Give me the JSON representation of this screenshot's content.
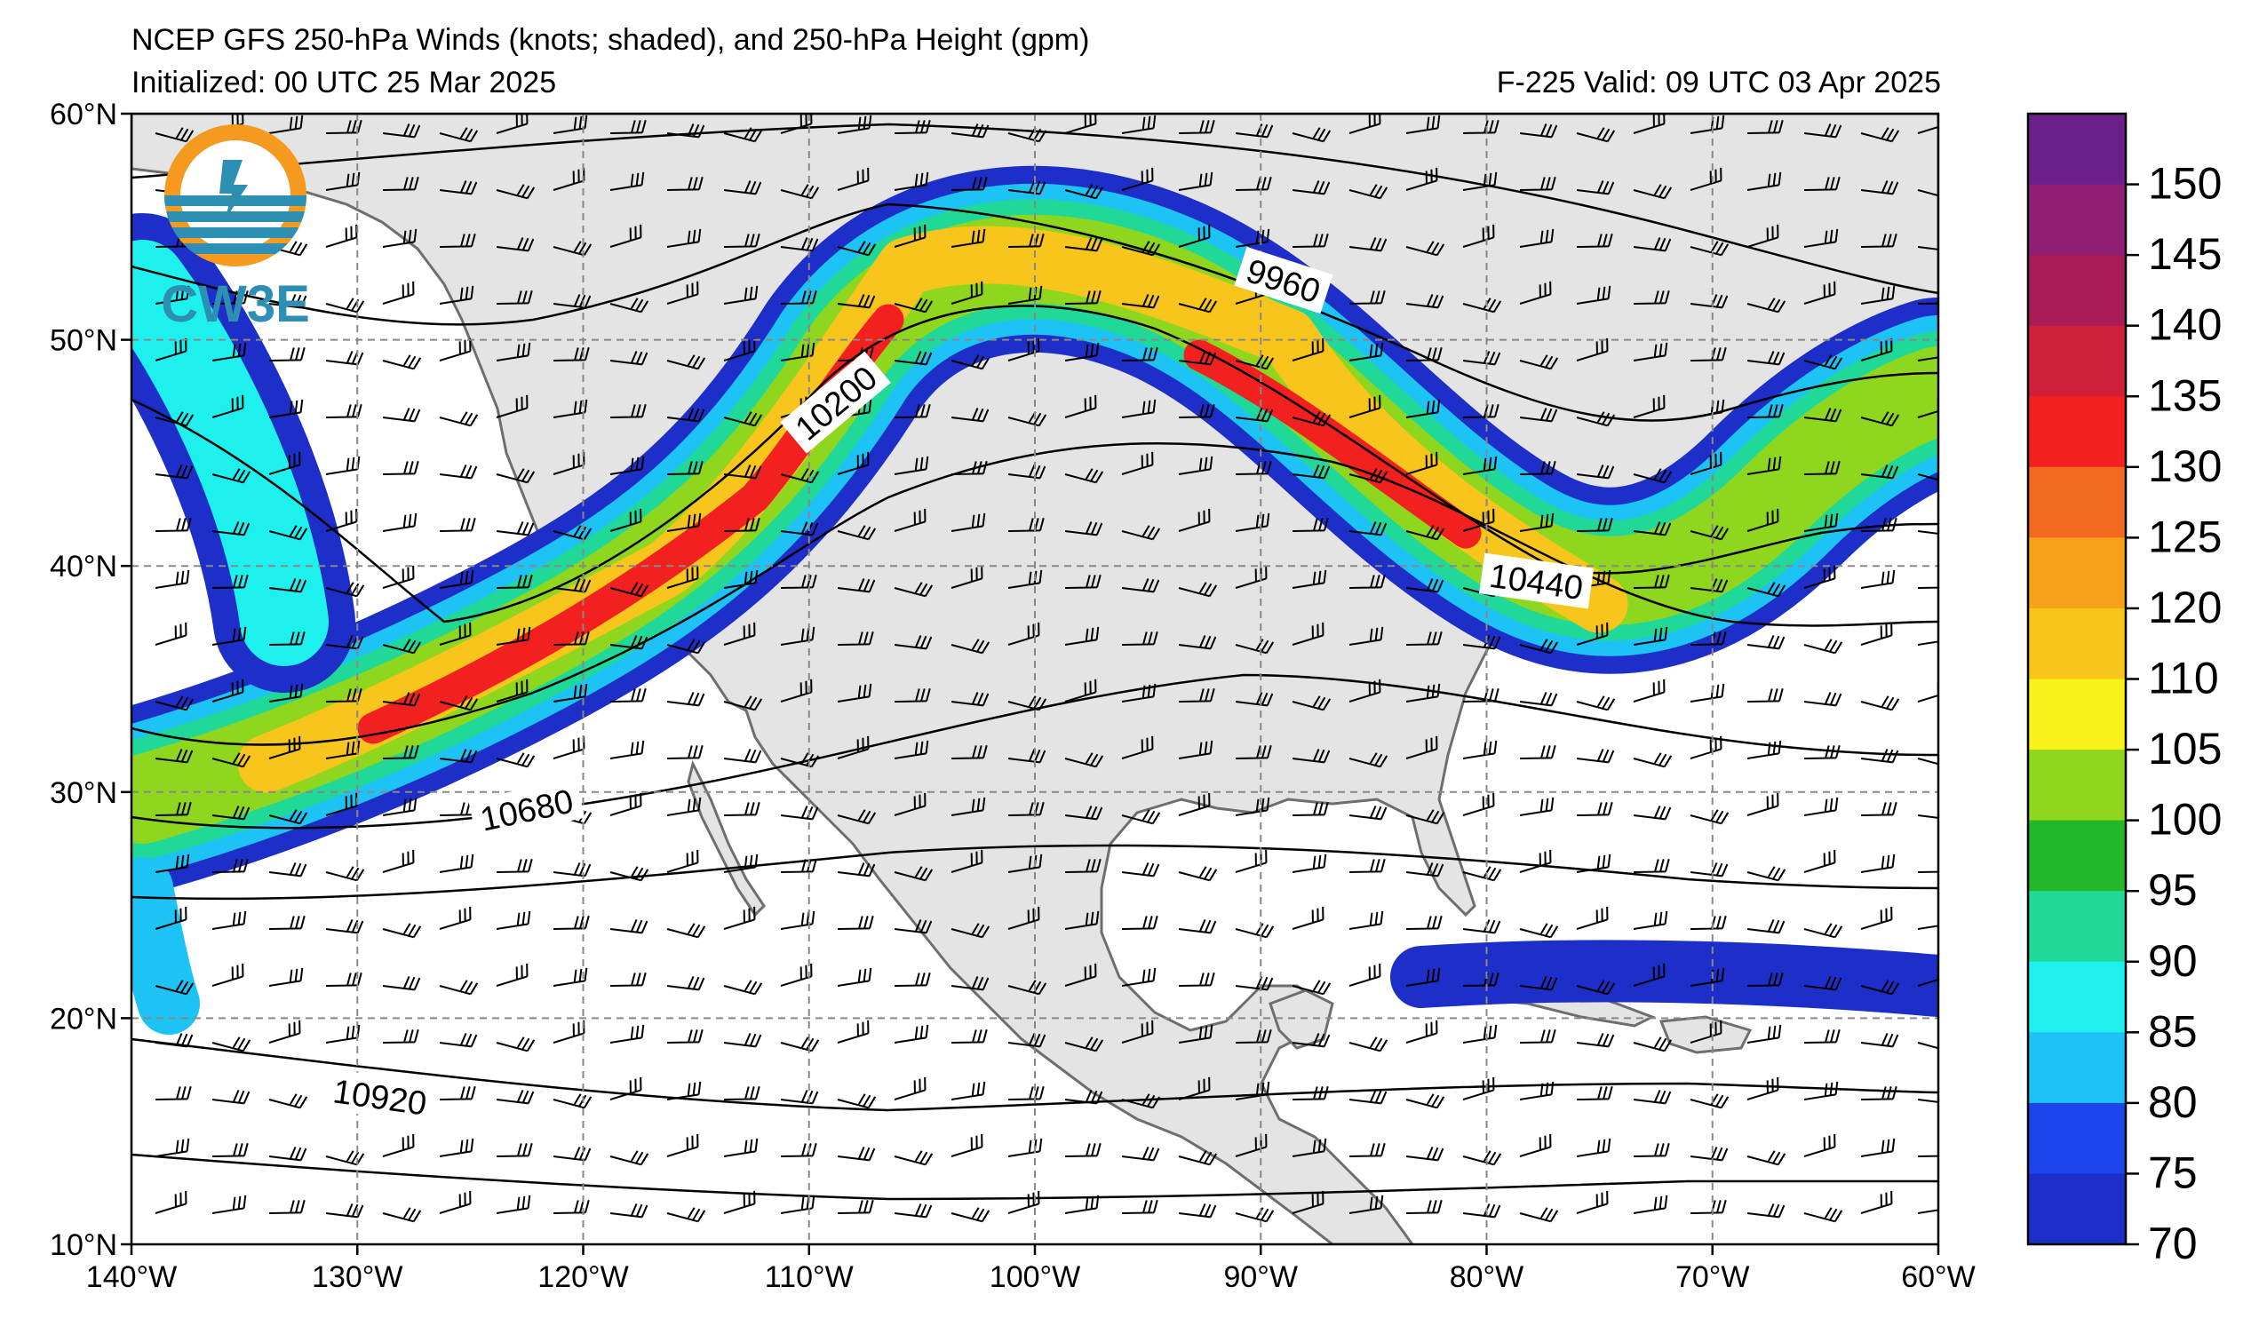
{
  "title": {
    "main": "NCEP GFS 250-hPa Winds (knots; shaded), and 250-hPa Height (gpm)",
    "initialized": "Initialized: 00 UTC 25 Mar 2025",
    "valid": "F-225  Valid: 09 UTC 03 Apr 2025"
  },
  "logo": {
    "text": "CW3E",
    "icon": "cw3e-sun-wave-logo"
  },
  "axes": {
    "lon_labels": [
      "140°W",
      "130°W",
      "120°W",
      "110°W",
      "100°W",
      "90°W",
      "80°W",
      "70°W",
      "60°W"
    ],
    "lat_labels": [
      "60°N",
      "50°N",
      "40°N",
      "30°N",
      "20°N",
      "10°N"
    ],
    "lon_range": [
      -140,
      -60
    ],
    "lat_range": [
      10,
      60
    ],
    "grid": true
  },
  "colorbar": {
    "labels": [
      "150",
      "145",
      "140",
      "135",
      "130",
      "125",
      "120",
      "110",
      "105",
      "100",
      "95",
      "90",
      "85",
      "80",
      "75",
      "70"
    ],
    "colors": [
      "#6a1f8a",
      "#8e1f73",
      "#a81c58",
      "#cf1f3a",
      "#f2201e",
      "#f26a1e",
      "#f5a21a",
      "#f8c51c",
      "#f7f21a",
      "#8fd61e",
      "#22b82a",
      "#20d999",
      "#1ef0ee",
      "#1ec3f5",
      "#1e44ee",
      "#1e2ec8"
    ]
  },
  "contour_labels": [
    {
      "value": "9960",
      "lon": -89,
      "lat": 52.6,
      "angle": 18
    },
    {
      "value": "10200",
      "lon": -108.8,
      "lat": 47.2,
      "angle": -40
    },
    {
      "value": "10440",
      "lon": -77.8,
      "lat": 39.3,
      "angle": 8
    },
    {
      "value": "10680",
      "lon": -122.5,
      "lat": 29.2,
      "angle": -12
    },
    {
      "value": "10920",
      "lon": -129,
      "lat": 16.5,
      "angle": 8
    }
  ],
  "colors": {
    "land": "#e4e4e4",
    "ocean": "#ffffff",
    "coastline": "#6e6e6e",
    "grid": "#888888"
  }
}
